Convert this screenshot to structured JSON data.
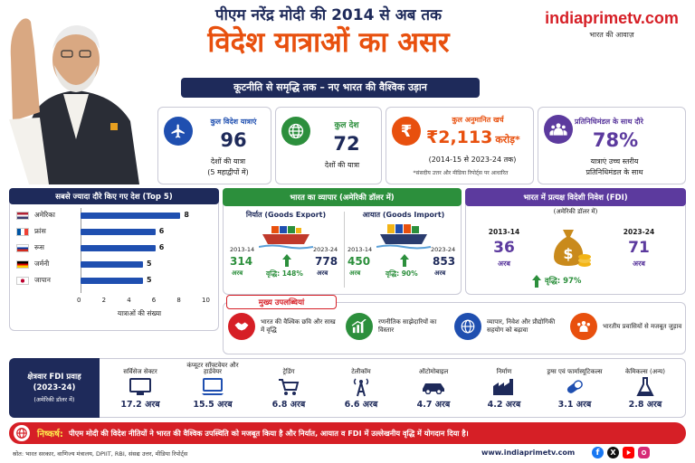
{
  "header": {
    "line1": "पीएम नरेंद्र मोदी की 2014 से अब तक",
    "line2": "विदेश यात्राओं का असर",
    "subtitle": "कूटनीति से समृद्धि तक – नए भारत की वैश्विक उड़ान"
  },
  "brand": {
    "name": "indiaprimetv.com",
    "tagline": "भारत की आवाज़"
  },
  "stats": [
    {
      "title": "कुल विदेश यात्राएं",
      "value": "96",
      "sub1": "देशों की यात्रा",
      "sub2": "(5 महाद्वीपों में)"
    },
    {
      "title": "कुल देश",
      "value": "72",
      "sub1": "देशों की यात्रा"
    },
    {
      "title": "कुल अनुमानित खर्च",
      "value": "₹2,113",
      "unit": "करोड़*",
      "sub1": "(2014-15 से 2023-24 तक)",
      "note": "*संसदीय उत्तर और मीडिया रिपोर्ट्स पर आधारित"
    },
    {
      "title": "प्रतिनिधिमंडल के साथ दौरे",
      "value": "78%",
      "sub1": "यात्राएं उच्च स्तरीय",
      "sub2": "प्रतिनिधिमंडल के साथ"
    }
  ],
  "top5": {
    "title": "सबसे ज्यादा दौरे किए गए देश (Top 5)",
    "xlabel": "यात्राओं की संख्या"
  },
  "chart_data": {
    "type": "bar",
    "title": "सबसे ज्यादा दौरे किए गए देश (Top 5)",
    "categories": [
      "अमेरिका",
      "फ्रांस",
      "रूस",
      "जर्मनी",
      "जापान"
    ],
    "values": [
      8,
      6,
      6,
      5,
      5
    ],
    "xlabel": "यात्राओं की संख्या",
    "ylabel": "",
    "xlim": [
      0,
      10
    ],
    "ticks": [
      "0",
      "2",
      "4",
      "6",
      "8",
      "10"
    ],
    "orientation": "horizontal"
  },
  "trade": {
    "title": "भारत का व्यापार (अमेरिकी डॉलर में)",
    "export": {
      "label": "निर्यात (Goods Export)",
      "y1": "2013-14",
      "v1": "314",
      "u1": "अरब",
      "growth": "वृद्धि: 148%",
      "y2": "2023-24",
      "v2": "778",
      "u2": "अरब"
    },
    "import": {
      "label": "आयात (Goods Import)",
      "y1": "2013-14",
      "v1": "450",
      "u1": "अरब",
      "growth": "वृद्धि: 90%",
      "y2": "2023-24",
      "v2": "853",
      "u2": "अरब"
    }
  },
  "fdi": {
    "title": "भारत में प्रत्यक्ष विदेशी निवेश (FDI)",
    "unit": "(अमेरिकी डॉलर में)",
    "y1": "2013-14",
    "v1": "36",
    "u1": "अरब",
    "y2": "2023-24",
    "v2": "71",
    "u2": "अरब",
    "growth": "वृद्धि: 97%"
  },
  "achievements": {
    "title": "मुख्य उपलब्धियां",
    "items": [
      {
        "text": "भारत की वैश्विक छवि और साख में वृद्धि",
        "icon": "handshake-icon"
      },
      {
        "text": "रणनीतिक साझेदारियों का विस्तार",
        "icon": "growth-chart-icon"
      },
      {
        "text": "व्यापार, निवेश और प्रौद्योगिकी सहयोग को बढ़ावा",
        "icon": "globe-icon"
      },
      {
        "text": "भारतीय प्रवासियों से मजबूत जुड़ाव",
        "icon": "people-icon"
      }
    ]
  },
  "sectoral": {
    "title": "क्षेत्रवार FDI प्रवाह (2023-24)",
    "unit": "(अमेरिकी डॉलर में)",
    "items": [
      {
        "name": "सर्विसेज सेक्टर",
        "value": "17.2 अरब",
        "icon": "monitor-icon"
      },
      {
        "name": "कंप्यूटर सॉफ्टवेयर और हार्डवेयर",
        "value": "15.5 अरब",
        "icon": "computer-icon"
      },
      {
        "name": "ट्रेडिंग",
        "value": "6.8 अरब",
        "icon": "cart-icon"
      },
      {
        "name": "टेलीकॉम",
        "value": "6.6 अरब",
        "icon": "tower-icon"
      },
      {
        "name": "ऑटोमोबाइल",
        "value": "4.7 अरब",
        "icon": "car-icon"
      },
      {
        "name": "निर्माण",
        "value": "4.2 अरब",
        "icon": "factory-icon"
      },
      {
        "name": "ड्रग्स एवं फार्मास्यूटिकल्स",
        "value": "3.1 अरब",
        "icon": "capsule-icon"
      },
      {
        "name": "केमिकल्स (अन्य)",
        "value": "2.8 अरब",
        "icon": "flask-icon"
      }
    ]
  },
  "conclusion": {
    "label": "निष्कर्ष:",
    "text": "पीएम मोदी की विदेश नीतियों ने भारत की वैश्विक उपस्थिति को मजबूत किया है और निर्यात, आयात व FDI में उल्लेखनीय वृद्धि में योगदान दिया है।"
  },
  "footer": {
    "source": "स्रोत: भारत सरकार, वाणिज्य मंत्रालय, DPIIT, RBI, संसद्य उत्तर, मीडिया रिपोर्ट्स",
    "site": "www.indiaprimetv.com"
  },
  "colors": {
    "navy": "#1e2a5a",
    "orange": "#e8500e",
    "green": "#2c8f3c",
    "purple": "#5c3a9e",
    "red": "#d61f26",
    "blue": "#1f4fb0"
  }
}
